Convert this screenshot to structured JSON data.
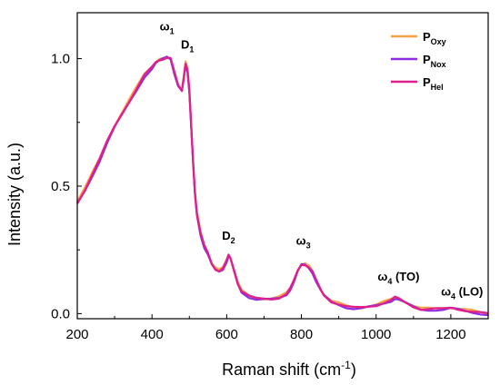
{
  "chart_data": {
    "type": "line",
    "xlabel": "Raman shift (cm",
    "xlabel_sup": "-1",
    "xlabel_end": ")",
    "ylabel": "Intensity (a.u.)",
    "xlim": [
      200,
      1300
    ],
    "ylim": [
      -0.02,
      1.18
    ],
    "xticks": [
      "200",
      "400",
      "600",
      "800",
      "1000",
      "1200"
    ],
    "yticks": [
      "0.0",
      "0.5",
      "1.0"
    ],
    "legend_position": "top-right",
    "annotations": [
      {
        "main": "ω",
        "sub": "1",
        "suffix": "",
        "x": 440,
        "y": 1.11
      },
      {
        "main": "D",
        "sub": "1",
        "suffix": "",
        "x": 495,
        "y": 1.04
      },
      {
        "main": "D",
        "sub": "2",
        "suffix": "",
        "x": 605,
        "y": 0.29
      },
      {
        "main": "ω",
        "sub": "3",
        "suffix": "",
        "x": 805,
        "y": 0.27
      },
      {
        "main": "ω",
        "sub": "4",
        "suffix": " (TO)",
        "x": 1060,
        "y": 0.13
      },
      {
        "main": "ω",
        "sub": "4",
        "suffix": " (LO)",
        "x": 1230,
        "y": 0.07
      }
    ],
    "x": [
      200,
      220,
      240,
      260,
      280,
      300,
      320,
      340,
      360,
      380,
      400,
      410,
      420,
      430,
      440,
      450,
      460,
      470,
      480,
      485,
      490,
      495,
      500,
      505,
      510,
      515,
      520,
      530,
      540,
      550,
      560,
      570,
      580,
      590,
      600,
      605,
      610,
      620,
      630,
      640,
      660,
      680,
      700,
      720,
      740,
      760,
      770,
      780,
      790,
      800,
      810,
      820,
      830,
      840,
      850,
      860,
      880,
      900,
      920,
      940,
      960,
      980,
      1000,
      1020,
      1040,
      1050,
      1060,
      1080,
      1100,
      1120,
      1140,
      1160,
      1180,
      1200,
      1220,
      1240,
      1260,
      1280,
      1300
    ],
    "series": [
      {
        "name": "P",
        "sub": "Oxy",
        "color": "#f5a24a",
        "values": [
          0.44,
          0.49,
          0.55,
          0.61,
          0.68,
          0.74,
          0.79,
          0.84,
          0.89,
          0.94,
          0.97,
          0.99,
          1.0,
          1.0,
          1.0,
          1.0,
          0.95,
          0.9,
          0.88,
          0.93,
          0.985,
          0.96,
          0.88,
          0.74,
          0.6,
          0.48,
          0.4,
          0.32,
          0.27,
          0.24,
          0.2,
          0.18,
          0.17,
          0.18,
          0.21,
          0.23,
          0.22,
          0.17,
          0.12,
          0.09,
          0.07,
          0.06,
          0.06,
          0.06,
          0.065,
          0.08,
          0.1,
          0.13,
          0.17,
          0.195,
          0.195,
          0.185,
          0.165,
          0.13,
          0.1,
          0.075,
          0.05,
          0.04,
          0.03,
          0.025,
          0.025,
          0.03,
          0.035,
          0.045,
          0.055,
          0.065,
          0.06,
          0.045,
          0.03,
          0.02,
          0.02,
          0.02,
          0.02,
          0.025,
          0.02,
          0.015,
          0.01,
          0.005,
          0.0
        ]
      },
      {
        "name": "P",
        "sub": "Nox",
        "color": "#8e2de2",
        "values": [
          0.43,
          0.48,
          0.54,
          0.6,
          0.67,
          0.73,
          0.78,
          0.83,
          0.88,
          0.93,
          0.96,
          0.98,
          0.99,
          1.0,
          1.01,
          1.0,
          0.94,
          0.89,
          0.87,
          0.92,
          0.98,
          0.95,
          0.87,
          0.73,
          0.59,
          0.47,
          0.39,
          0.31,
          0.26,
          0.23,
          0.19,
          0.17,
          0.165,
          0.175,
          0.205,
          0.225,
          0.215,
          0.165,
          0.115,
          0.085,
          0.065,
          0.055,
          0.055,
          0.055,
          0.06,
          0.075,
          0.095,
          0.125,
          0.165,
          0.19,
          0.19,
          0.18,
          0.16,
          0.125,
          0.095,
          0.07,
          0.045,
          0.035,
          0.025,
          0.02,
          0.02,
          0.025,
          0.03,
          0.04,
          0.05,
          0.06,
          0.055,
          0.04,
          0.025,
          0.015,
          0.015,
          0.015,
          0.015,
          0.02,
          0.015,
          0.01,
          0.005,
          0.0,
          -0.005
        ]
      },
      {
        "name": "P",
        "sub": "Hel",
        "color": "#e0208a",
        "values": [
          0.435,
          0.485,
          0.545,
          0.605,
          0.675,
          0.735,
          0.785,
          0.835,
          0.885,
          0.935,
          0.965,
          0.985,
          0.995,
          1.0,
          1.005,
          1.0,
          0.945,
          0.895,
          0.875,
          0.925,
          0.982,
          0.955,
          0.875,
          0.735,
          0.595,
          0.475,
          0.395,
          0.315,
          0.265,
          0.235,
          0.195,
          0.175,
          0.168,
          0.178,
          0.208,
          0.228,
          0.218,
          0.168,
          0.118,
          0.088,
          0.068,
          0.058,
          0.058,
          0.058,
          0.063,
          0.078,
          0.098,
          0.128,
          0.168,
          0.193,
          0.193,
          0.183,
          0.163,
          0.128,
          0.098,
          0.073,
          0.048,
          0.038,
          0.028,
          0.023,
          0.023,
          0.028,
          0.033,
          0.043,
          0.053,
          0.063,
          0.058,
          0.043,
          0.028,
          0.018,
          0.018,
          0.018,
          0.018,
          0.023,
          0.018,
          0.013,
          0.008,
          0.003,
          -0.002
        ]
      }
    ]
  }
}
